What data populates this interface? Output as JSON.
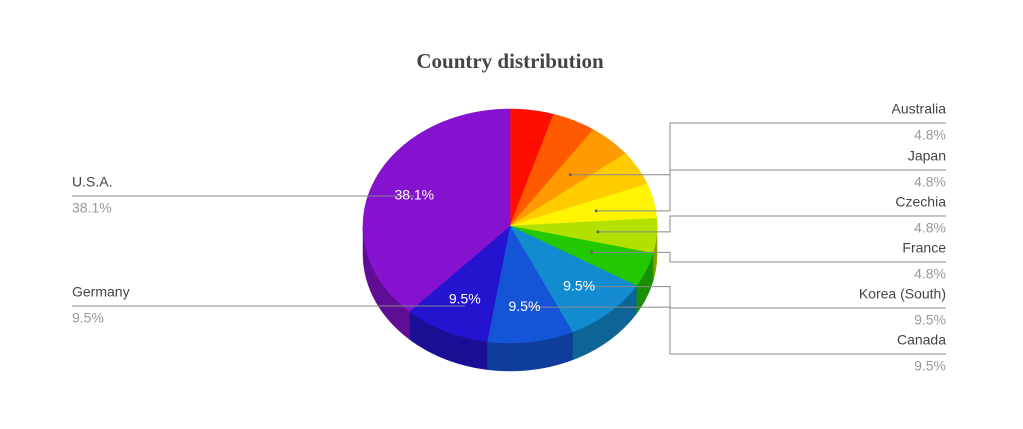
{
  "chart_data": {
    "type": "pie",
    "title": "Country distribution",
    "categories": [
      null,
      null,
      "Australia",
      null,
      "Japan",
      "Czechia",
      "France",
      "Korea (South)",
      "Canada",
      "Germany",
      "U.S.A."
    ],
    "values": [
      4.8,
      4.8,
      4.8,
      4.8,
      4.8,
      4.8,
      4.8,
      9.5,
      9.5,
      9.5,
      38.1
    ],
    "value_labels": [
      null,
      null,
      "4.8%",
      null,
      "4.8%",
      "4.8%",
      "4.8%",
      "9.5%",
      "9.5%",
      "9.5%",
      "38.1%"
    ],
    "colors": [
      "#ff0d00",
      "#ff5a00",
      "#ff9a00",
      "#ffcc00",
      "#fff500",
      "#b4e000",
      "#22c800",
      "#128bd0",
      "#1455d8",
      "#2413cf",
      "#8412cf"
    ]
  }
}
